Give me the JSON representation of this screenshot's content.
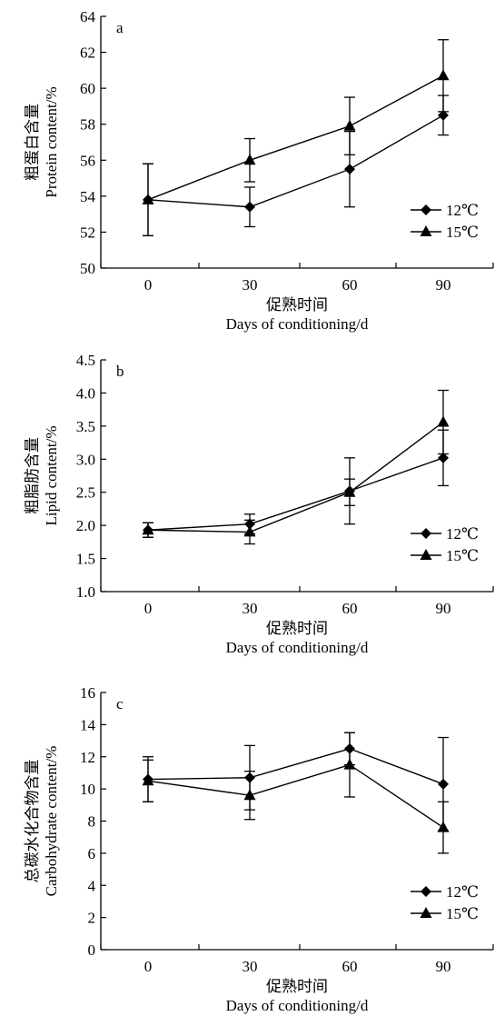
{
  "chart_data": [
    {
      "type": "line",
      "panel_label": "a",
      "categories": [
        "0",
        "30",
        "60",
        "90"
      ],
      "x": [
        0,
        30,
        60,
        90
      ],
      "xlabel_cn": "促熟时间",
      "xlabel": "Days of conditioning/d",
      "ylabel_cn": "粗蛋白含量",
      "ylabel": "Protein content/%",
      "ylim": [
        50,
        64
      ],
      "yticks": [
        50,
        52,
        54,
        56,
        58,
        60,
        62,
        64
      ],
      "ytick_labels": [
        "50",
        "52",
        "54",
        "56",
        "58",
        "60",
        "62",
        "64"
      ],
      "legend_position": "bottom-right",
      "series": [
        {
          "name": "12℃",
          "marker": "diamond",
          "values": [
            53.8,
            53.4,
            55.5,
            58.5
          ],
          "errors": [
            2.0,
            1.1,
            2.1,
            1.1
          ]
        },
        {
          "name": "15℃",
          "marker": "triangle",
          "values": [
            53.8,
            56.0,
            57.9,
            60.7
          ],
          "errors": [
            2.0,
            1.2,
            1.6,
            2.0
          ]
        }
      ]
    },
    {
      "type": "line",
      "panel_label": "b",
      "categories": [
        "0",
        "30",
        "60",
        "90"
      ],
      "x": [
        0,
        30,
        60,
        90
      ],
      "xlabel_cn": "促熟时间",
      "xlabel": "Days of conditioning/d",
      "ylabel_cn": "粗脂肪含量",
      "ylabel": "Lipid content/%",
      "ylim": [
        1.0,
        4.5
      ],
      "yticks": [
        1.0,
        1.5,
        2.0,
        2.5,
        3.0,
        3.5,
        4.0,
        4.5
      ],
      "ytick_labels": [
        "1.0",
        "1.5",
        "2.0",
        "2.5",
        "3.0",
        "3.5",
        "4.0",
        "4.5"
      ],
      "legend_position": "bottom-right",
      "series": [
        {
          "name": "12℃",
          "marker": "diamond",
          "values": [
            1.93,
            2.02,
            2.52,
            3.02
          ],
          "errors": [
            0.11,
            0.15,
            0.5,
            0.42
          ]
        },
        {
          "name": "15℃",
          "marker": "triangle",
          "values": [
            1.93,
            1.9,
            2.5,
            3.56
          ],
          "errors": [
            0.11,
            0.18,
            0.2,
            0.48
          ]
        }
      ]
    },
    {
      "type": "line",
      "panel_label": "c",
      "categories": [
        "0",
        "30",
        "60",
        "90"
      ],
      "x": [
        0,
        30,
        60,
        90
      ],
      "xlabel_cn": "促熟时间",
      "xlabel": "Days of conditioning/d",
      "ylabel_cn": "总碳水化合物含量",
      "ylabel": "Carbohydrate content/%",
      "ylim": [
        0,
        16
      ],
      "yticks": [
        0,
        2,
        4,
        6,
        8,
        10,
        12,
        14,
        16
      ],
      "ytick_labels": [
        "0",
        "2",
        "4",
        "6",
        "8",
        "10",
        "12",
        "14",
        "16"
      ],
      "legend_position": "bottom-right",
      "series": [
        {
          "name": "12℃",
          "marker": "diamond",
          "values": [
            10.6,
            10.7,
            12.5,
            10.3
          ],
          "errors": [
            1.4,
            2.0,
            1.0,
            2.9
          ]
        },
        {
          "name": "15℃",
          "marker": "triangle",
          "values": [
            10.5,
            9.6,
            11.5,
            7.6
          ],
          "errors": [
            1.3,
            1.5,
            2.0,
            1.6
          ]
        }
      ]
    }
  ]
}
